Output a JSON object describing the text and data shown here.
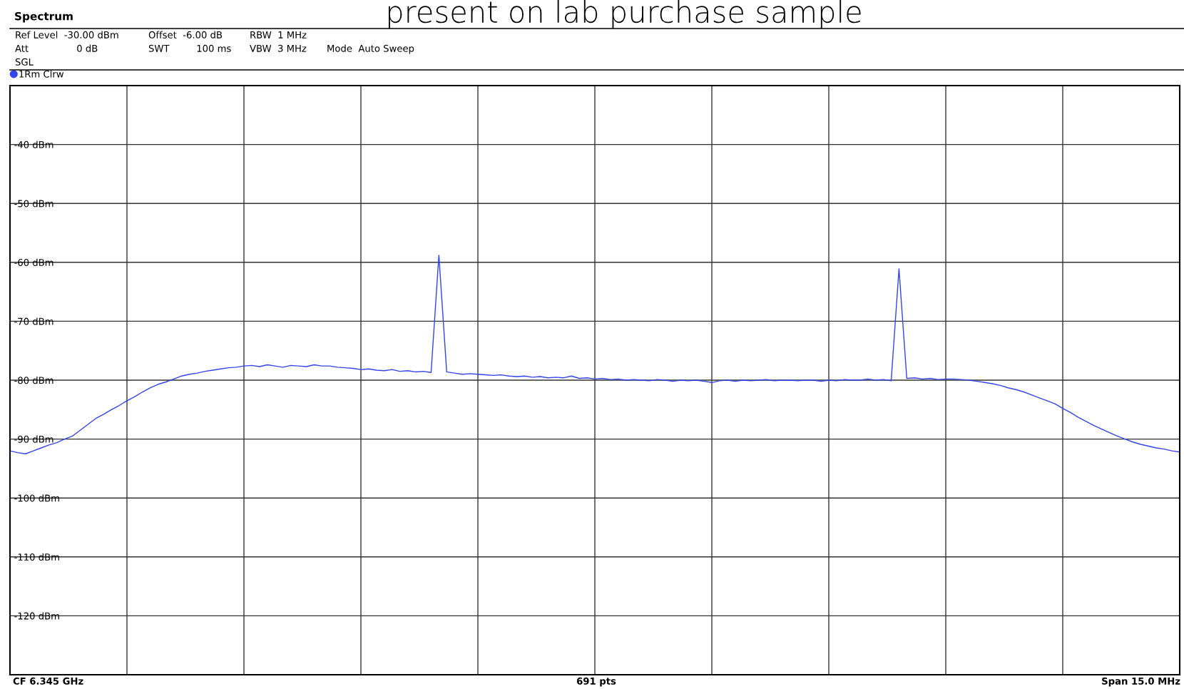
{
  "chart_data": {
    "type": "line",
    "title": "present on lab purchase sample",
    "annotations": [
      "Spectrum",
      "Ref Level  -30.00 dBm",
      "Offset  -6.00 dB",
      "RBW  1 MHz",
      "Att                0 dB",
      "SWT         100 ms",
      "VBW  3 MHz",
      "Mode  Auto Sweep",
      "SGL",
      "CF 6.345 GHz",
      "691 pts",
      "Span 15.0 MHz"
    ],
    "categories": [
      null,
      null,
      null,
      null,
      null,
      null,
      null,
      null,
      null,
      null,
      null,
      null,
      null,
      null,
      null,
      null,
      null,
      null,
      null,
      null,
      null,
      null,
      null,
      null,
      null,
      null,
      null,
      null,
      null,
      null,
      null,
      null,
      null,
      null,
      null,
      null,
      null,
      null,
      null,
      null,
      null,
      null,
      null,
      null,
      null,
      null,
      null,
      null,
      null,
      null,
      null,
      null,
      null,
      null,
      null,
      null,
      null,
      null,
      null,
      null,
      null,
      null,
      null,
      null,
      null,
      null,
      null,
      null,
      null,
      null,
      null,
      null,
      null,
      null,
      null,
      null,
      null,
      null,
      null,
      null,
      null,
      null,
      null,
      null,
      null,
      null,
      null,
      null,
      null,
      null,
      null,
      null,
      null,
      null,
      null,
      null,
      null,
      null,
      null,
      null,
      null,
      null,
      null,
      null,
      null,
      null,
      null,
      null,
      null,
      null,
      null,
      null,
      null,
      null,
      null,
      null,
      null,
      null,
      null,
      null,
      null,
      null,
      null,
      null,
      null,
      null,
      null,
      null,
      null,
      null,
      null,
      null,
      null,
      null,
      null,
      null,
      null,
      null,
      null,
      null,
      null,
      null,
      null,
      null,
      null,
      null,
      null,
      null,
      null,
      null,
      null
    ],
    "series": [
      {
        "name": "1Rm Clrw",
        "color": "#3344ee",
        "values": [
          -92,
          -92.3,
          -92.5,
          -92,
          -91.5,
          -91,
          -90.6,
          -90,
          -89.5,
          -88.5,
          -87.5,
          -86.5,
          -85.8,
          -85,
          -84.3,
          -83.5,
          -82.8,
          -82,
          -81.3,
          -80.7,
          -80.3,
          -79.8,
          -79.3,
          -79,
          -78.8,
          -78.5,
          -78.3,
          -78.1,
          -77.9,
          -77.8,
          -77.6,
          -77.5,
          -77.7,
          -77.4,
          -77.6,
          -77.8,
          -77.5,
          -77.6,
          -77.7,
          -77.4,
          -77.6,
          -77.6,
          -77.8,
          -77.9,
          -78,
          -78.2,
          -78.1,
          -78.3,
          -78.4,
          -78.2,
          -78.5,
          -78.4,
          -78.6,
          -78.5,
          -78.7,
          -58.8,
          -78.6,
          -78.8,
          -79,
          -78.9,
          -79,
          -79.1,
          -79.2,
          -79.1,
          -79.3,
          -79.4,
          -79.3,
          -79.5,
          -79.4,
          -79.6,
          -79.5,
          -79.6,
          -79.3,
          -79.7,
          -79.6,
          -79.8,
          -79.7,
          -79.9,
          -79.8,
          -80,
          -79.9,
          -80,
          -80.1,
          -79.9,
          -80,
          -80.2,
          -80,
          -80.1,
          -80,
          -80.2,
          -80.4,
          -80.1,
          -80,
          -80.2,
          -80,
          -80.1,
          -80,
          -79.9,
          -80.1,
          -80,
          -80,
          -80.1,
          -80,
          -80,
          -80.2,
          -80,
          -80.1,
          -79.9,
          -80,
          -80,
          -79.8,
          -80,
          -79.9,
          -80.1,
          -61.1,
          -79.7,
          -79.6,
          -79.8,
          -79.7,
          -79.9,
          -79.8,
          -79.8,
          -79.9,
          -80,
          -80.2,
          -80.4,
          -80.6,
          -80.9,
          -81.3,
          -81.6,
          -82,
          -82.5,
          -83,
          -83.5,
          -84,
          -84.8,
          -85.5,
          -86.3,
          -87,
          -87.7,
          -88.3,
          -88.9,
          -89.5,
          -90,
          -90.5,
          -90.9,
          -91.2,
          -91.5,
          -91.7,
          -92,
          -92.2
        ]
      }
    ],
    "ylim": [
      -130,
      -30
    ],
    "yticks": [
      {
        "value": -40,
        "label": "-40 dBm"
      },
      {
        "value": -50,
        "label": "-50 dBm"
      },
      {
        "value": -60,
        "label": "-60 dBm"
      },
      {
        "value": -70,
        "label": "-70 dBm"
      },
      {
        "value": -80,
        "label": "-80 dBm"
      },
      {
        "value": -90,
        "label": "-90 dBm"
      },
      {
        "value": -100,
        "label": "-100 dBm"
      },
      {
        "value": -110,
        "label": "-110 dBm"
      },
      {
        "value": -120,
        "label": "-120 dBm"
      }
    ],
    "tick_labels": "y",
    "grid": true,
    "legend": "top left",
    "marker": "none",
    "line_style": "solid"
  }
}
